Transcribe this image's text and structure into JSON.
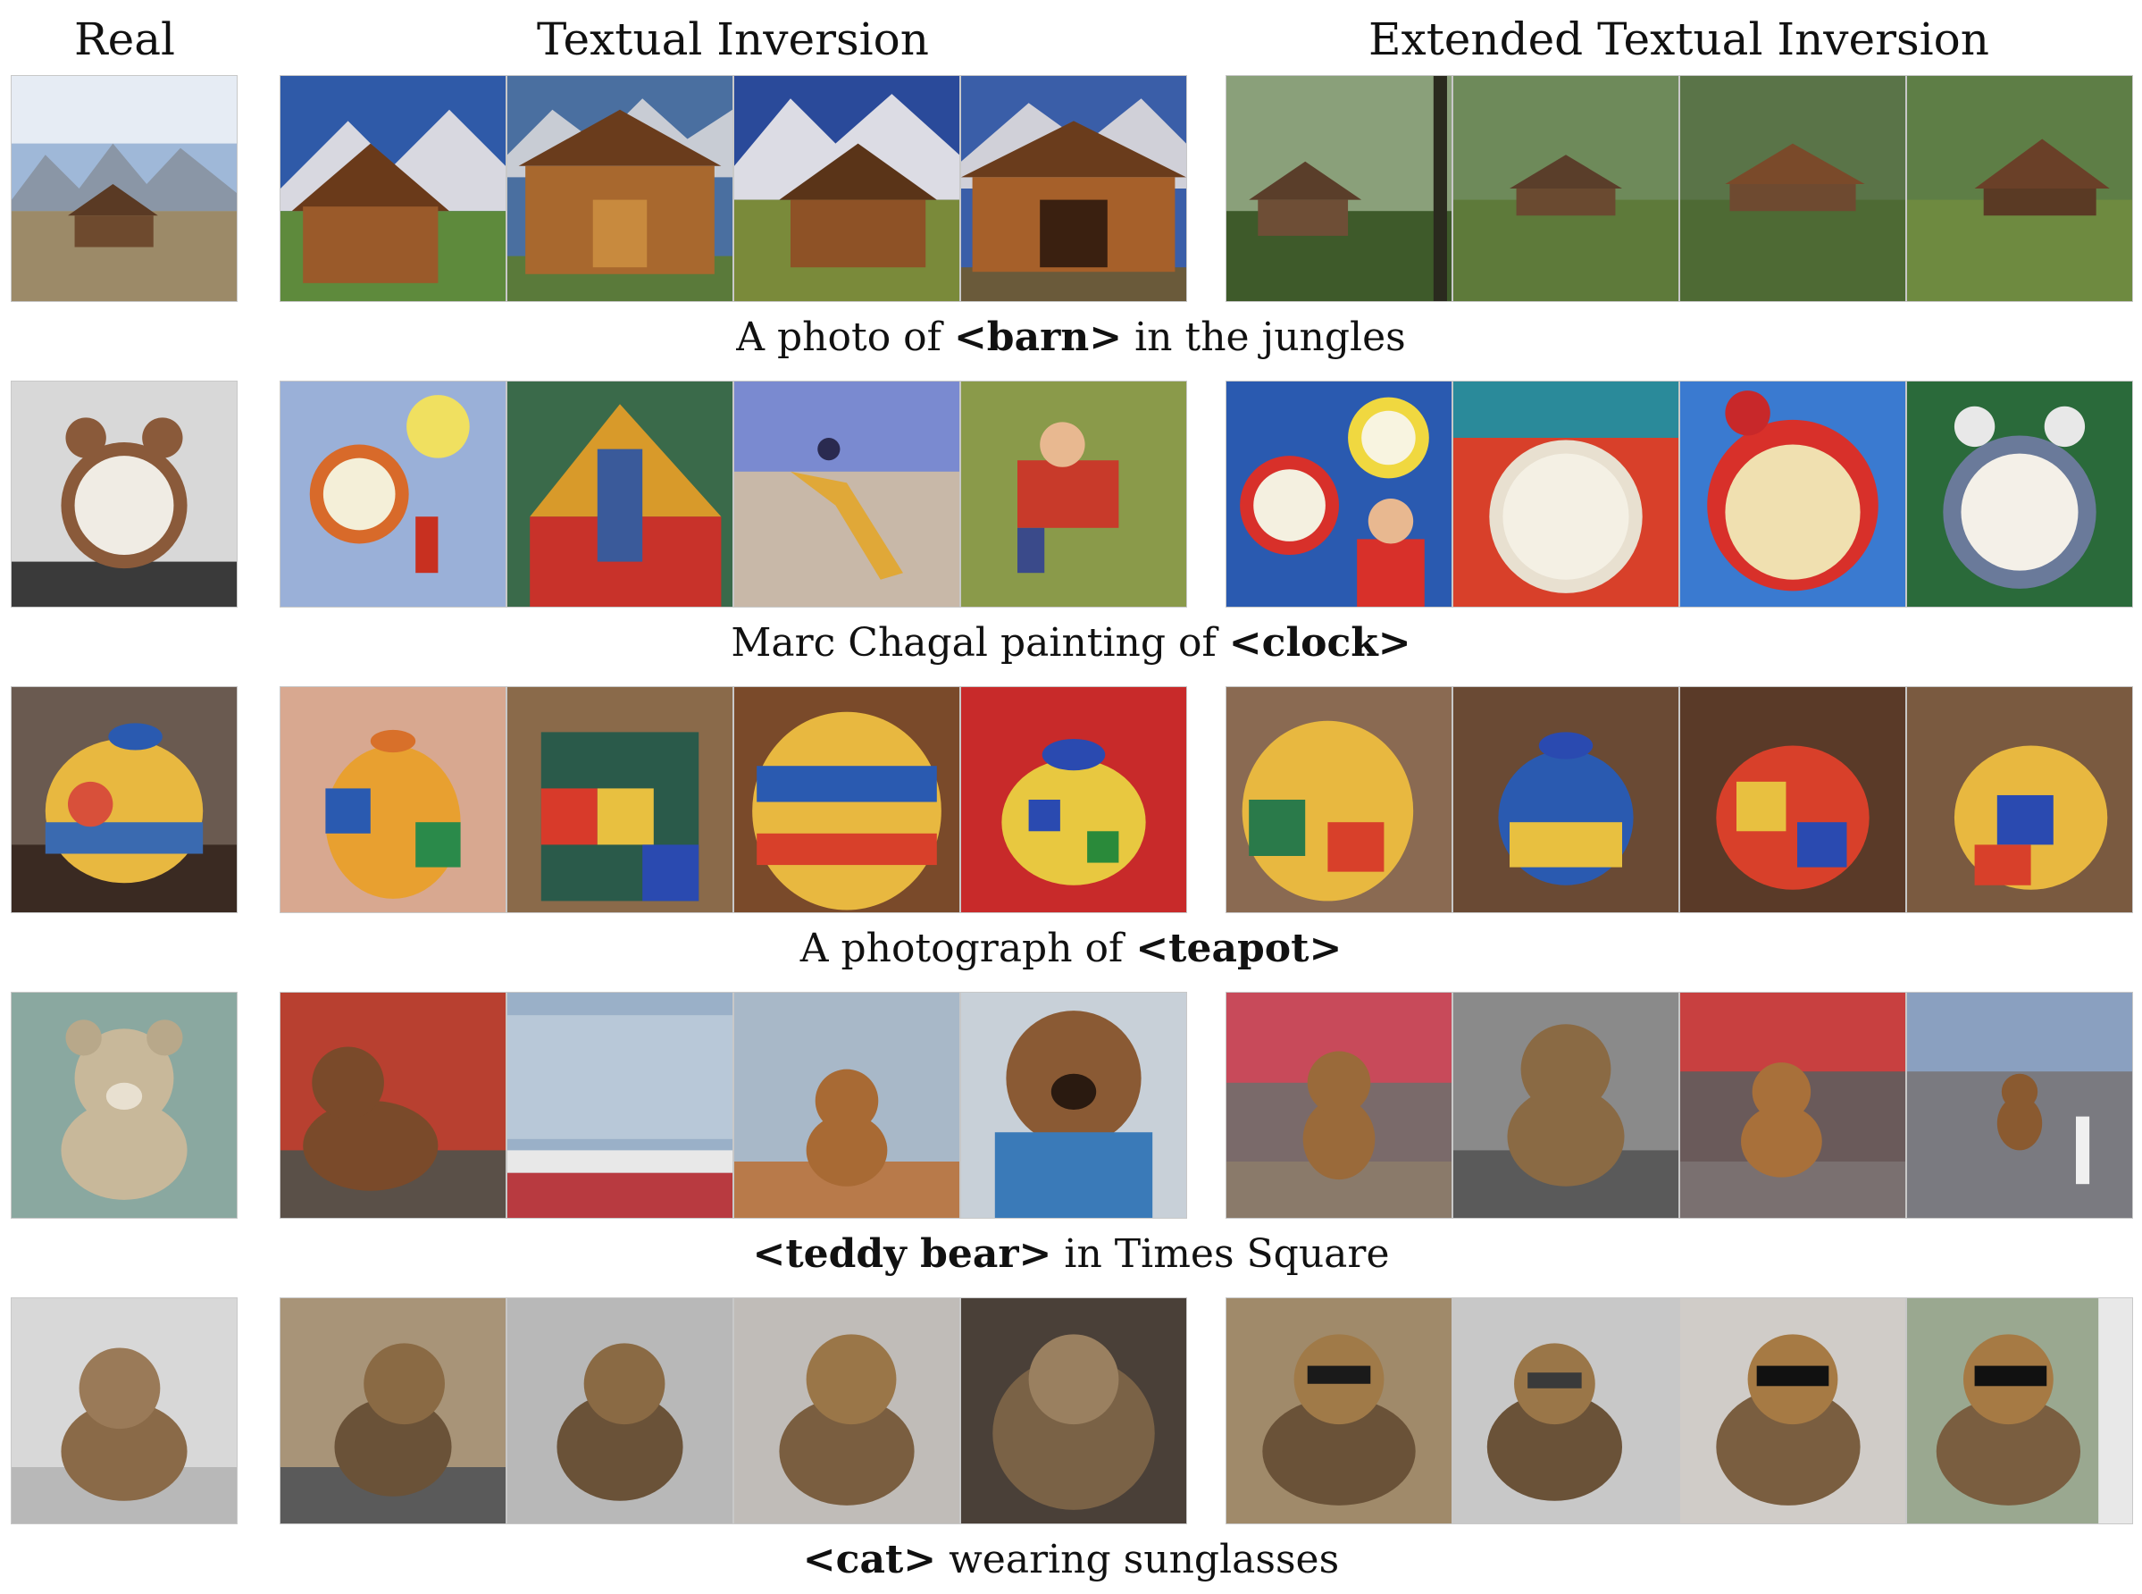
{
  "headers": {
    "real": "Real",
    "textual_inversion": "Textual Inversion",
    "extended_textual_inversion": "Extended Textual Inversion"
  },
  "rows": [
    {
      "concept": "barn",
      "caption": {
        "before": "A photo of ",
        "token": "<barn>",
        "after": " in the jungles"
      }
    },
    {
      "concept": "clock",
      "caption": {
        "before": "Marc Chagal painting of ",
        "token": "<clock>",
        "after": ""
      }
    },
    {
      "concept": "teapot",
      "caption": {
        "before": "A photograph of ",
        "token": "<teapot>",
        "after": ""
      }
    },
    {
      "concept": "teddy-bear",
      "caption": {
        "before": "",
        "token": "<teddy bear>",
        "after": " in Times Square"
      }
    },
    {
      "concept": "cat",
      "caption": {
        "before": "",
        "token": "<cat>",
        "after": " wearing sunglasses"
      }
    }
  ],
  "colors": {
    "background": "#ffffff",
    "text": "#111111",
    "tile_border": "#c8c8c8"
  }
}
